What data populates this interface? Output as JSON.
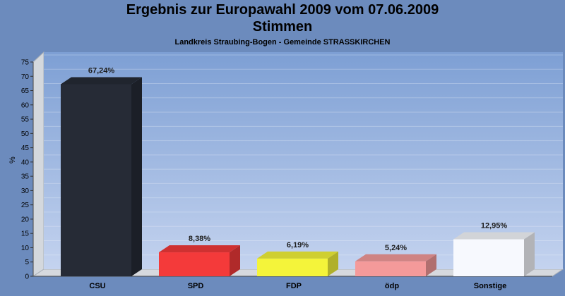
{
  "chart_data": {
    "type": "bar",
    "title": "Ergebnis zur Europawahl 2009 vom 07.06.2009",
    "title_line2": "Stimmen",
    "subtitle": "Landkreis Straubing-Bogen - Gemeinde STRASSKIRCHEN",
    "ylabel": "%",
    "xlabel": "",
    "ylim": [
      0,
      75
    ],
    "yticks": [
      0,
      5,
      10,
      15,
      20,
      25,
      30,
      35,
      40,
      45,
      50,
      55,
      60,
      65,
      70,
      75
    ],
    "grid": true,
    "categories": [
      "CSU",
      "SPD",
      "FDP",
      "ödp",
      "Sonstige"
    ],
    "values": [
      67.24,
      8.38,
      6.19,
      5.24,
      12.95
    ],
    "value_labels": [
      "67,24%",
      "8,38%",
      "6,19%",
      "5,24%",
      "12,95%"
    ],
    "colors": [
      "#262b36",
      "#f43a3a",
      "#f4f43a",
      "#f49a9a",
      "#f7f9fe"
    ]
  }
}
